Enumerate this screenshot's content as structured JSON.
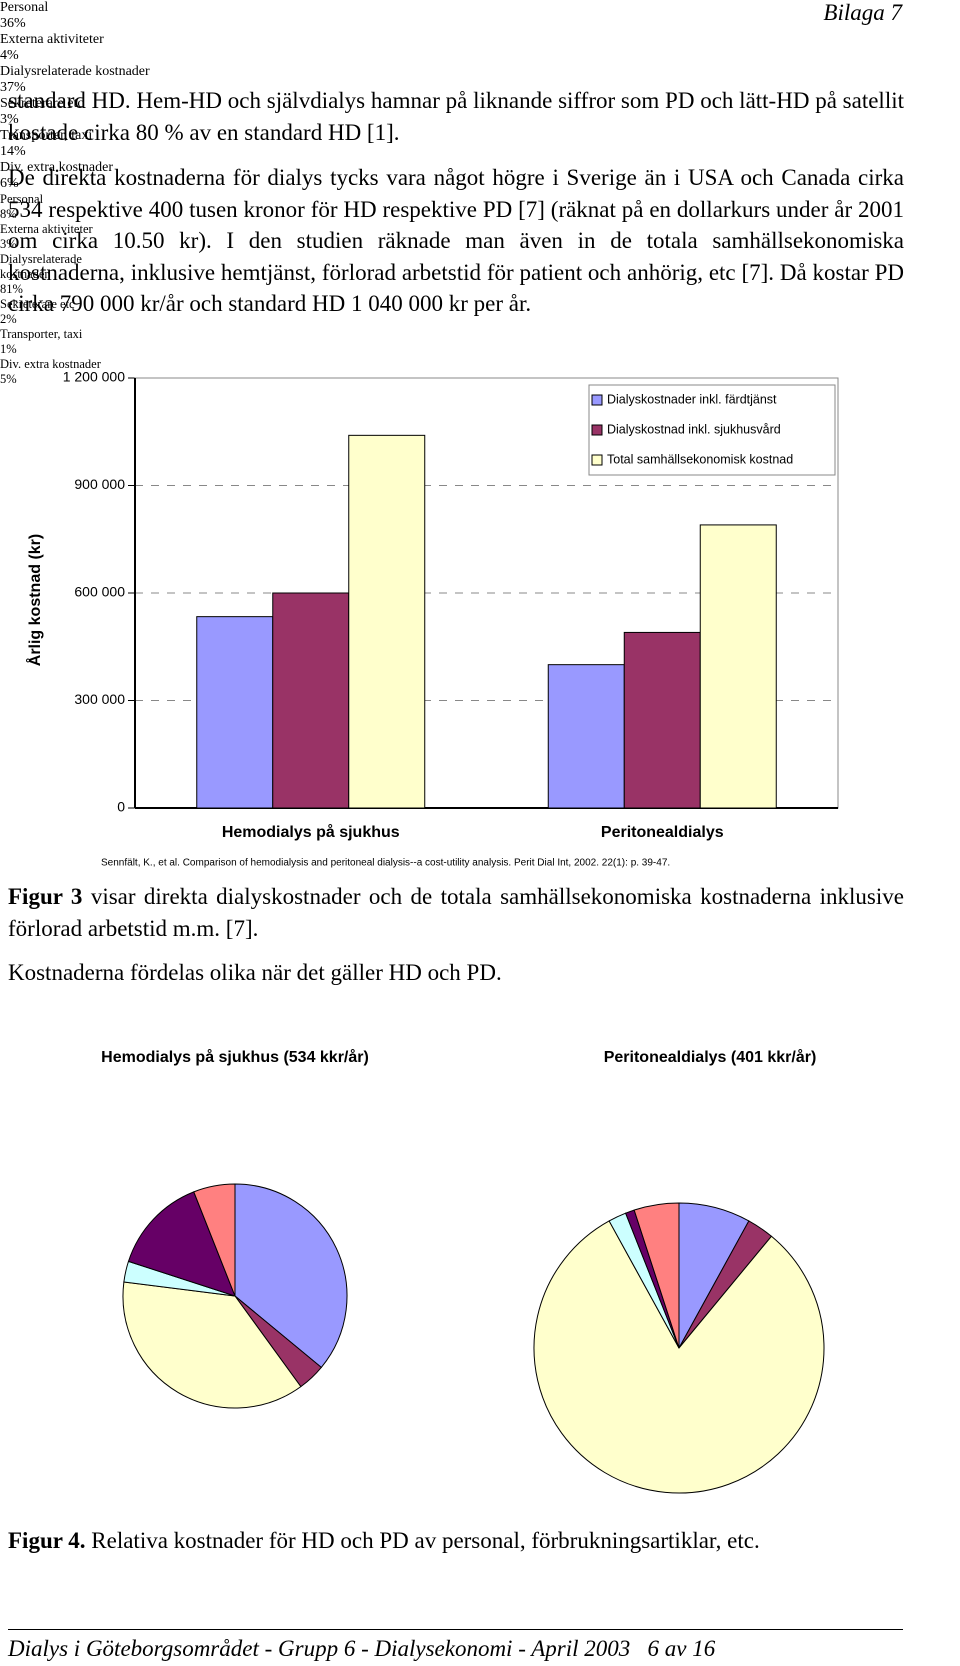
{
  "header": {
    "appendix": "Bilaga 7"
  },
  "paragraphs": [
    "standard HD. Hem-HD och självdialys hamnar på liknande siffror som PD och lätt-HD på satellit kostade cirka 80 % av en standard HD [1].",
    "De direkta kostnaderna för dialys tycks vara något högre i Sverige än i USA och Canada cirka 534 respektive 400 tusen kronor för HD respektive PD [7] (räknat på en dollarkurs under år 2001 om cirka 10.50 kr). I den studien räknade man även in de totala samhällsekonomiska kostnaderna, inklusive hemtjänst, förlorad arbetstid för patient och anhörig, etc [7]. Då kostar PD cirka 790 000 kr/år och standard HD 1 040 000 kr per år."
  ],
  "chart_data": [
    {
      "type": "bar",
      "y_label": "Årlig kostnad (kr)",
      "source": "Sennfält, K., et al. Comparison of hemodialysis and peritoneal dialysis--a cost-utility analysis. Perit Dial Int, 2002. 22(1): p. 39-47.",
      "categories": [
        "Hemodialys på sjukhus",
        "Peritonealdialys"
      ],
      "series": [
        {
          "name": "Dialyskostnader inkl. färdtjänst",
          "color": "#9999ff",
          "values": [
            534000,
            400000
          ]
        },
        {
          "name": "Dialyskostnad inkl. sjukhusvård",
          "color": "#993366",
          "values": [
            600000,
            490000
          ]
        },
        {
          "name": "Total samhällsekonomisk kostnad",
          "color": "#ffffcc",
          "values": [
            1040000,
            790000
          ]
        }
      ],
      "ylim": [
        0,
        1200000
      ],
      "yticks": [
        0,
        {
          "value": 300000,
          "label": "300 000"
        },
        {
          "value": 600000,
          "label": "600 000"
        },
        {
          "value": 900000,
          "label": "900 000"
        },
        {
          "value": 1200000,
          "label": "1 200 000"
        }
      ],
      "grid": true,
      "legend": "top-right"
    },
    {
      "type": "pie",
      "title": "Hemodialys på sjukhus (534 kkr/år)",
      "categories": [
        "Personal",
        "Externa aktiviteter",
        "Dialysrelaterade kostnader",
        "Sekreterare etc",
        "Transporter, taxi",
        "Div. extra kostnader"
      ],
      "values": [
        36,
        4,
        37,
        3,
        14,
        6
      ],
      "value_labels": [
        "36%",
        "4%",
        "37%",
        "3%",
        "14%",
        "6%"
      ],
      "colors": [
        "#9999ff",
        "#993366",
        "#ffffcc",
        "#ccffff",
        "#660066",
        "#ff8080"
      ]
    },
    {
      "type": "pie",
      "title": "Peritonealdialys (401 kkr/år)",
      "categories": [
        "Personal",
        "Externa aktiviteter",
        "Dialysrelaterade kostnader",
        "Sekreterare etc",
        "Transporter, taxi",
        "Div. extra kostnader"
      ],
      "values": [
        8,
        3,
        81,
        2,
        1,
        5
      ],
      "value_labels": [
        "8%",
        "3%",
        "81%",
        "2%",
        "1%",
        "5%"
      ],
      "colors": [
        "#9999ff",
        "#993366",
        "#ffffcc",
        "#ccffff",
        "#660066",
        "#ff8080"
      ]
    }
  ],
  "figure3_caption": {
    "label": "Figur 3",
    "text": " visar direkta dialyskostnader och de totala samhällsekonomiska kostnaderna inklusive förlorad arbetstid m.m. [7]."
  },
  "paragraph_after": "Kostnaderna fördelas olika när det gäller HD och PD.",
  "figure4_caption": {
    "label": "Figur 4.",
    "text": " Relativa kostnader för HD och PD av personal, förbrukningsartiklar, etc."
  },
  "footer": {
    "text": "Dialys i Göteborgsområdet - Grupp 6 - Dialysekonomi - April 2003",
    "page": "6 av 16"
  }
}
